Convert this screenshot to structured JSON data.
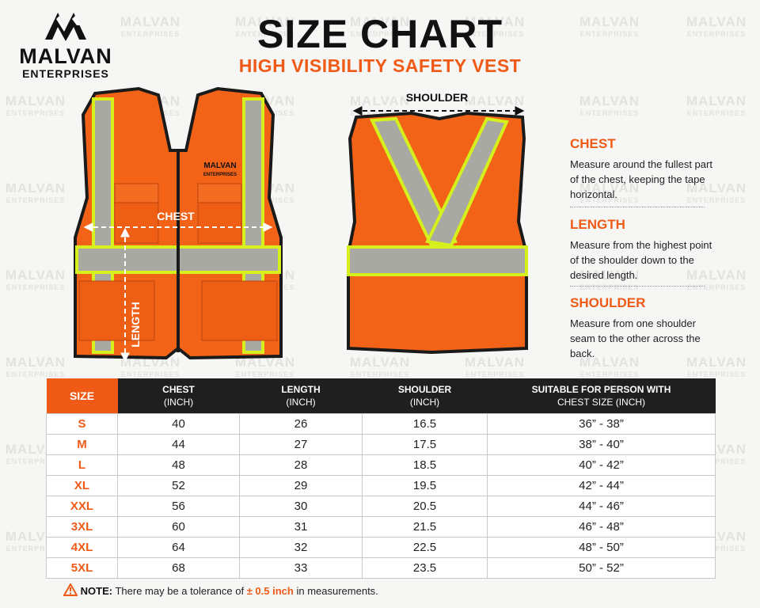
{
  "logo": {
    "name": "MALVAN",
    "sub": "ENTERPRISES"
  },
  "watermark": {
    "name": "MALVAN",
    "sub": "ENTERPRISES"
  },
  "header": {
    "title": "SIZE CHART",
    "subtitle": "HIGH VISIBILITY SAFETY VEST"
  },
  "front_vest": {
    "brand": "MALVAN",
    "brand_sub": "ENTERPRISES",
    "chest_label": "CHEST",
    "length_label": "LENGTH"
  },
  "back_vest": {
    "shoulder_label": "SHOULDER"
  },
  "guide": [
    {
      "title": "CHEST",
      "text": "Measure around the fullest part of the chest, keeping the tape horizontal."
    },
    {
      "title": "LENGTH",
      "text": "Measure from the highest point of the shoulder down to the desired length."
    },
    {
      "title": "SHOULDER",
      "text": "Measure from one shoulder seam to the other across the back."
    }
  ],
  "table": {
    "columns": [
      {
        "text": "SIZE"
      },
      {
        "text": "CHEST",
        "sub": "(INCH)"
      },
      {
        "text": "LENGTH",
        "sub": "(INCH)"
      },
      {
        "text": "SHOULDER",
        "sub": "(INCH)"
      },
      {
        "text": "SUITABLE FOR PERSON WITH",
        "sub": "CHEST SIZE (INCH)"
      }
    ],
    "rows": [
      [
        "S",
        40,
        26,
        16.5,
        "36” - 38”"
      ],
      [
        "M",
        44,
        27,
        17.5,
        "38” - 40”"
      ],
      [
        "L",
        48,
        28,
        18.5,
        "40” - 42”"
      ],
      [
        "XL",
        52,
        29,
        19.5,
        "42” - 44”"
      ],
      [
        "XXL",
        56,
        30,
        20.5,
        "44” - 46”"
      ],
      [
        "3XL",
        60,
        31,
        21.5,
        "46” - 48”"
      ],
      [
        "4XL",
        64,
        32,
        22.5,
        "48” - 50”"
      ],
      [
        "5XL",
        68,
        33,
        23.5,
        "50” - 52”"
      ]
    ]
  },
  "note": {
    "label": "NOTE:",
    "text": "There may be a tolerance of",
    "highlight": "± 0.5 inch",
    "end": "in measurements."
  }
}
